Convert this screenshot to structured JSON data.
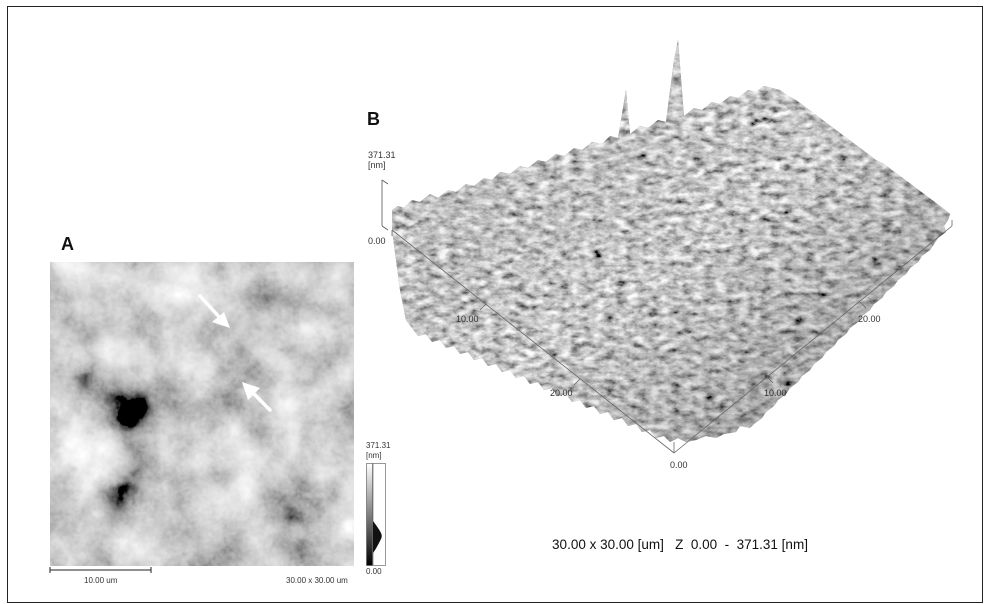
{
  "panel_a": {
    "label": "A",
    "scalebar_text": "10.00 um",
    "size_text": "30.00 x 30.00 um",
    "colorbar": {
      "max_value": "371.31",
      "unit": "[nm]",
      "min_value": "0.00"
    },
    "arrow_count": 2
  },
  "panel_b": {
    "label": "B",
    "z_axis": {
      "max_value": "371.31",
      "unit": "[nm]",
      "min_value": "0.00"
    },
    "left_axis_ticks": [
      "10.00",
      "20.00"
    ],
    "right_axis_ticks": [
      "10.00",
      "20.00"
    ],
    "origin_tick": "0.00",
    "caption": "30.00 x 30.00 [um]   Z  0.00  -  371.31 [nm]"
  },
  "colors": {
    "border": "#222222",
    "surface_light": "#bdbdbd",
    "surface_dark": "#3a3a3a",
    "arrow": "#ffffff"
  }
}
